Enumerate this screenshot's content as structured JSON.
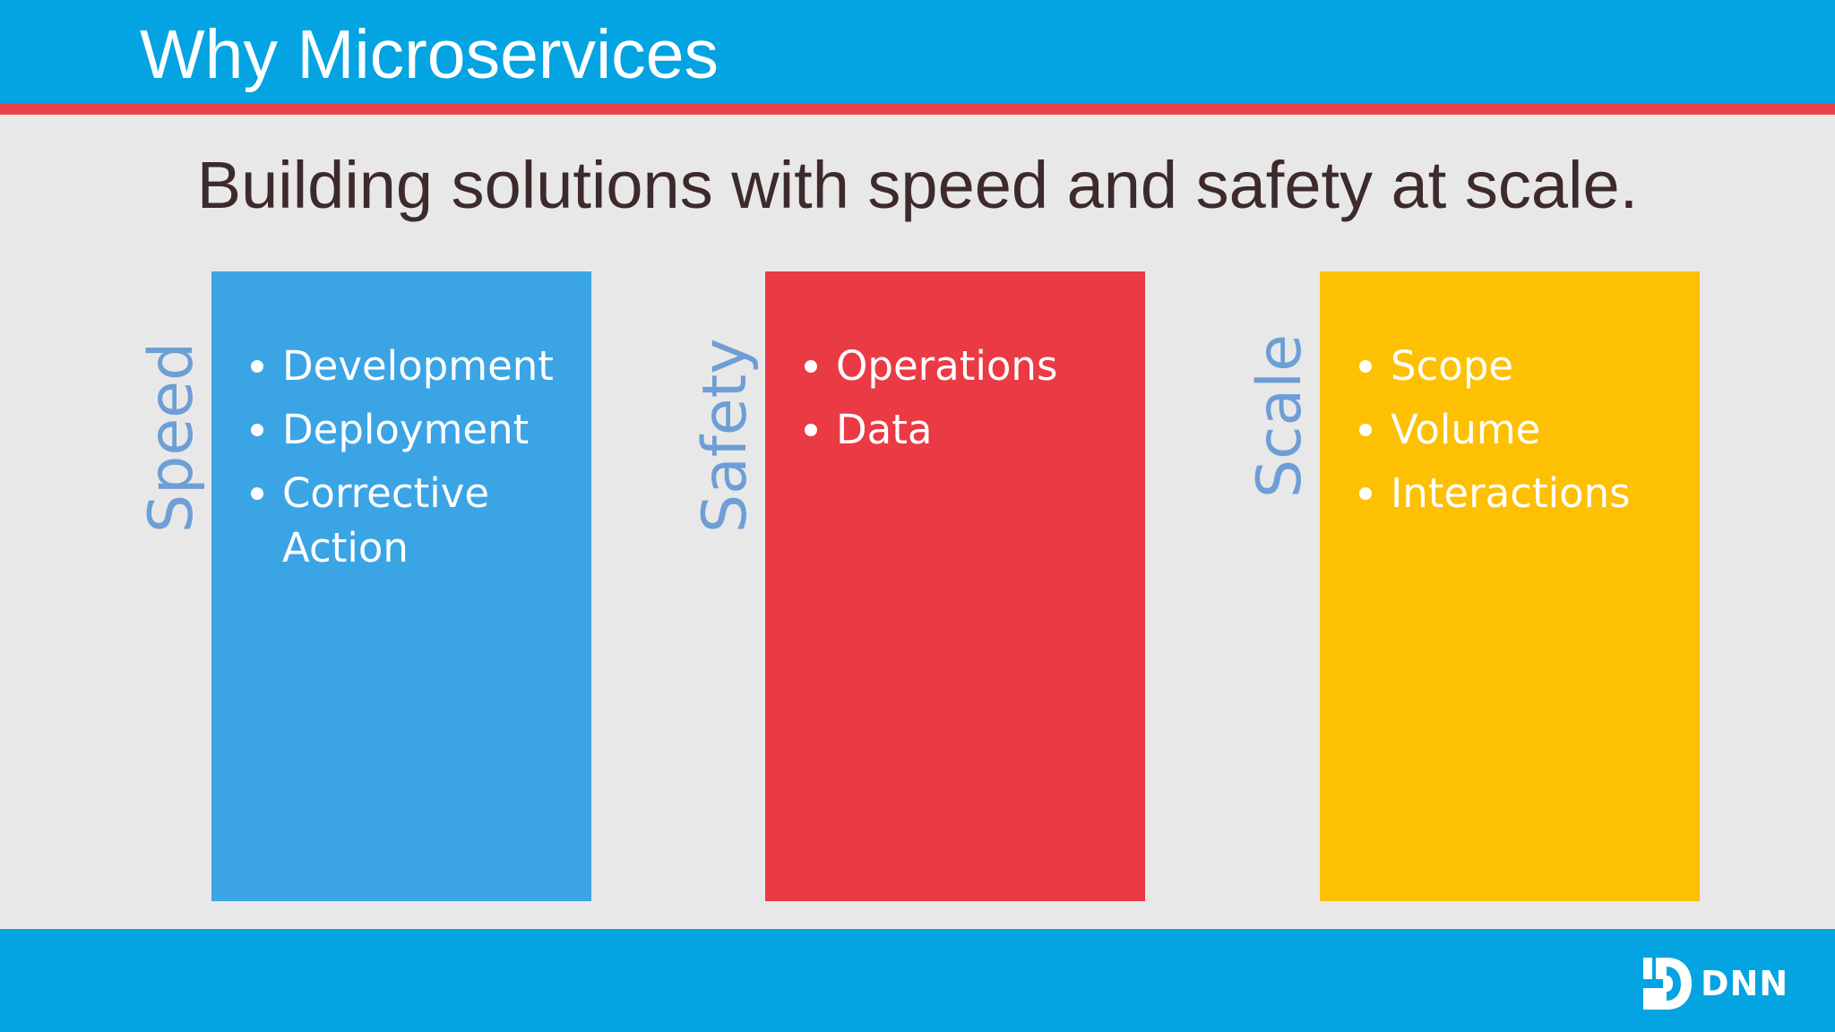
{
  "slide": {
    "title": "Why Microservices",
    "subtitle": "Building solutions with speed and safety at scale."
  },
  "pillars": [
    {
      "label": "Speed",
      "color": "#3ba4e5",
      "items": [
        "Development",
        "Deployment",
        "Corrective Action"
      ]
    },
    {
      "label": "Safety",
      "color": "#ea3a44",
      "items": [
        "Operations",
        "Data"
      ]
    },
    {
      "label": "Scale",
      "color": "#fdc002",
      "items": [
        "Scope",
        "Volume",
        "Interactions"
      ]
    }
  ],
  "footer": {
    "logo_text": "DNN",
    "logo_icon": "dnn-logo-icon"
  },
  "colors": {
    "header": "#04a3e2",
    "accent_rule": "#e8424a",
    "background": "#e9e8e8",
    "vertical_label": "#6d9fd6",
    "subtitle_text": "#3d2a2b"
  }
}
